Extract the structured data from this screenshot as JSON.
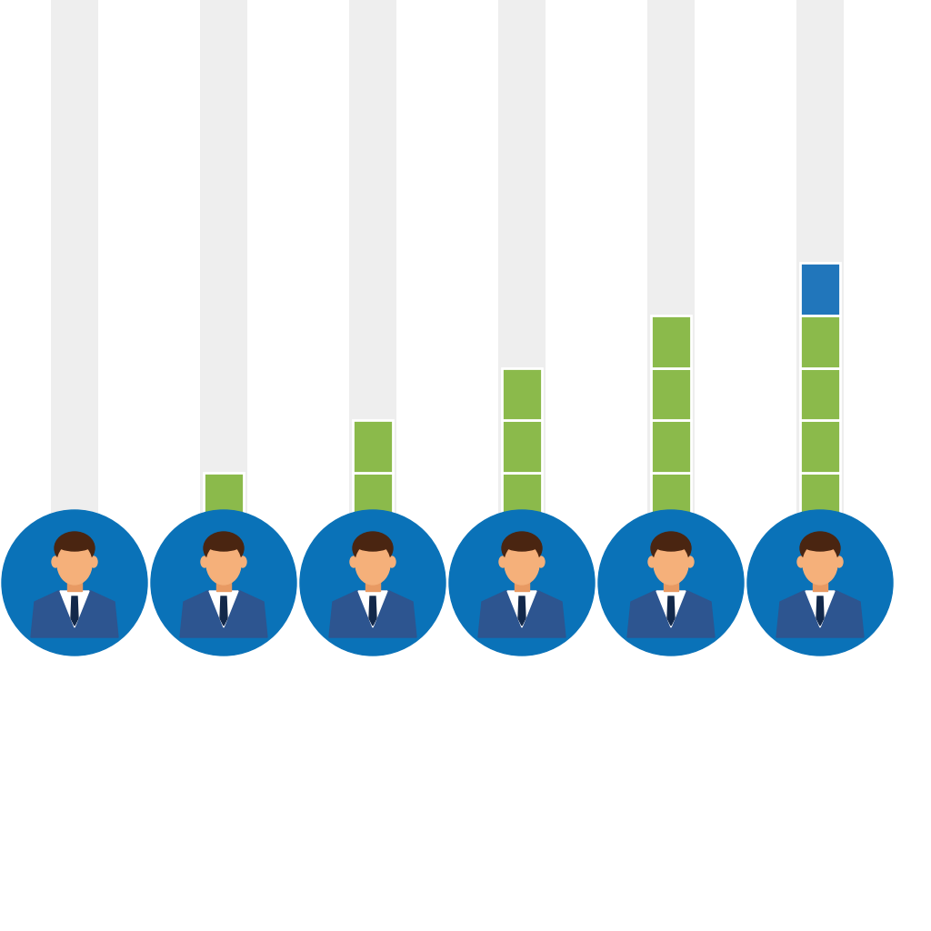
{
  "chart_data": {
    "type": "bar",
    "stacked": true,
    "categories": [
      null,
      null,
      null,
      null,
      null,
      null
    ],
    "series": [
      {
        "color": "#8bba4b",
        "values": [
          0,
          1,
          2,
          3,
          4,
          4
        ]
      },
      {
        "color": "#2176bb",
        "values": [
          0,
          0,
          0,
          0,
          0,
          1
        ]
      }
    ],
    "ylim": [
      0,
      10
    ],
    "tick_labels": false
  }
}
